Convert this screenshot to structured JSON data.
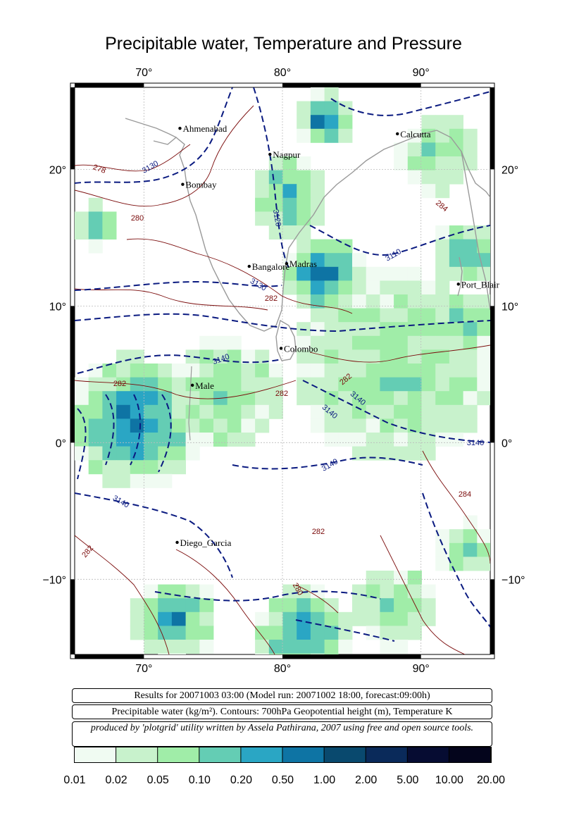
{
  "title": "Precipitable water, Temperature and Pressure",
  "axes": {
    "lon_ticks": [
      {
        "value": 70,
        "label": "70°"
      },
      {
        "value": 80,
        "label": "80°"
      },
      {
        "value": 90,
        "label": "90°"
      }
    ],
    "lat_ticks": [
      {
        "value": 20,
        "label": "20°"
      },
      {
        "value": 10,
        "label": "10°"
      },
      {
        "value": 0,
        "label": "0°"
      },
      {
        "value": -10,
        "label": "−10°"
      }
    ],
    "lon_range": [
      65,
      95
    ],
    "lat_range": [
      -15.5,
      26
    ]
  },
  "cities": [
    {
      "name": "Ahmenabad",
      "lon": 72.6,
      "lat": 23.0
    },
    {
      "name": "Nagpur",
      "lon": 79.1,
      "lat": 21.1
    },
    {
      "name": "Calcutta",
      "lon": 88.3,
      "lat": 22.6
    },
    {
      "name": "Bombay",
      "lon": 72.8,
      "lat": 18.9
    },
    {
      "name": "Bangalore",
      "lon": 77.6,
      "lat": 12.9
    },
    {
      "name": "Madras",
      "lon": 80.3,
      "lat": 13.1
    },
    {
      "name": "Port_Blair",
      "lon": 92.7,
      "lat": 11.6
    },
    {
      "name": "Colombo",
      "lon": 79.9,
      "lat": 6.9
    },
    {
      "name": "Male",
      "lon": 73.5,
      "lat": 4.2
    },
    {
      "name": "Diego_Garcia",
      "lon": 72.4,
      "lat": -7.3
    }
  ],
  "contour_labels": {
    "geopotential": [
      "3130",
      "3120",
      "3110",
      "3130",
      "3140",
      "3140",
      "3140",
      "3140",
      "3140",
      "3140"
    ],
    "temperature": [
      "278",
      "280",
      "282",
      "282",
      "282",
      "282",
      "284",
      "284",
      "282",
      "282",
      "280"
    ]
  },
  "info": {
    "results": "Results for 20071003 03:00 (Model run: 20071002 18:00, forecast:09:00h)",
    "legend": "Precipitable water (kg/m²).  Contours: 700hPa Geopotential height (m), Temperature K",
    "credit": "produced by 'plotgrid' utility written by Assela Pathirana, 2007 using free and open source tools."
  },
  "colorbar": {
    "labels": [
      "0.01",
      "0.02",
      "0.05",
      "0.10",
      "0.20",
      "0.50",
      "1.00",
      "2.00",
      "5.00",
      "10.00",
      "20.00"
    ],
    "colors": [
      "#f0fbf2",
      "#c8f2cc",
      "#a0eda8",
      "#64cdb4",
      "#2aa6c4",
      "#0e74a4",
      "#09496e",
      "#0a2a5a",
      "#060c32",
      "#04051c"
    ]
  }
}
